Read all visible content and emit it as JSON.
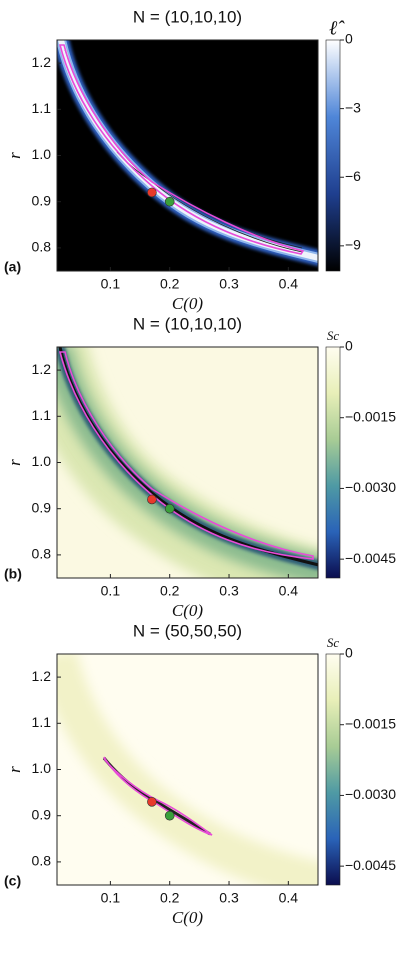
{
  "chart_data": [
    {
      "type": "heatmap",
      "title": "N = (10,10,10)",
      "xlabel": "C(0)",
      "ylabel": "r",
      "panel_label": "(a)",
      "xlim": [
        0.01,
        0.45
      ],
      "ylim": [
        0.75,
        1.25
      ],
      "xticks": [
        0.1,
        0.2,
        0.3,
        0.4
      ],
      "yticks": [
        0.8,
        0.9,
        {
          "value": 1,
          "label": "1.0"
        },
        1.1,
        1.2
      ],
      "colorbar": {
        "label": "ℓ̂",
        "lim": [
          -10.1,
          0
        ],
        "ticks": [
          0,
          {
            "value": -3,
            "label": "−3"
          },
          {
            "value": -6,
            "label": "−6"
          },
          {
            "value": -9,
            "label": "−9"
          }
        ],
        "colormap": [
          "#000000",
          "#1f3f8f",
          "#4f86d8",
          "#ffffff"
        ]
      },
      "points": [
        {
          "x": 0.17,
          "y": 0.92,
          "color": "#e8392b"
        },
        {
          "x": 0.2,
          "y": 0.9,
          "color": "#3aa03a"
        }
      ]
    },
    {
      "type": "heatmap",
      "title": "N = (10,10,10)",
      "xlabel": "C(0)",
      "ylabel": "r",
      "panel_label": "(b)",
      "xlim": [
        0.01,
        0.45
      ],
      "ylim": [
        0.75,
        1.25
      ],
      "xticks": [
        0.1,
        0.2,
        0.3,
        0.4
      ],
      "yticks": [
        0.8,
        0.9,
        {
          "value": 1,
          "label": "1.0"
        },
        1.1,
        1.2
      ],
      "colorbar": {
        "label": "Sc",
        "lim": [
          -0.0049,
          0
        ],
        "ticks": [
          0,
          {
            "value": -0.0015,
            "label": "−0.0015"
          },
          {
            "value": -0.003,
            "label": "−0.0030"
          },
          {
            "value": -0.0045,
            "label": "−0.0045"
          }
        ],
        "colormap": [
          "#0b0d4e",
          "#2a63b8",
          "#4f9aa4",
          "#a8cc95",
          "#e8efb8",
          "#fffdf0"
        ]
      },
      "points": [
        {
          "x": 0.17,
          "y": 0.92,
          "color": "#e8392b"
        },
        {
          "x": 0.2,
          "y": 0.9,
          "color": "#3aa03a"
        }
      ]
    },
    {
      "type": "heatmap",
      "title": "N = (50,50,50)",
      "xlabel": "C(0)",
      "ylabel": "r",
      "panel_label": "(c)",
      "xlim": [
        0.01,
        0.45
      ],
      "ylim": [
        0.75,
        1.25
      ],
      "xticks": [
        0.1,
        0.2,
        0.3,
        0.4
      ],
      "yticks": [
        0.8,
        0.9,
        {
          "value": 1,
          "label": "1.0"
        },
        1.1,
        1.2
      ],
      "colorbar": {
        "label": "Sc",
        "lim": [
          -0.0049,
          0
        ],
        "ticks": [
          0,
          {
            "value": -0.0015,
            "label": "−0.0015"
          },
          {
            "value": -0.003,
            "label": "−0.0030"
          },
          {
            "value": -0.0045,
            "label": "−0.0045"
          }
        ],
        "colormap": [
          "#0b0d4e",
          "#2a63b8",
          "#4f9aa4",
          "#a8cc95",
          "#e8efb8",
          "#fffdf0"
        ]
      },
      "points": [
        {
          "x": 0.17,
          "y": 0.93,
          "color": "#e8392b"
        },
        {
          "x": 0.2,
          "y": 0.9,
          "color": "#3aa03a"
        }
      ]
    }
  ]
}
